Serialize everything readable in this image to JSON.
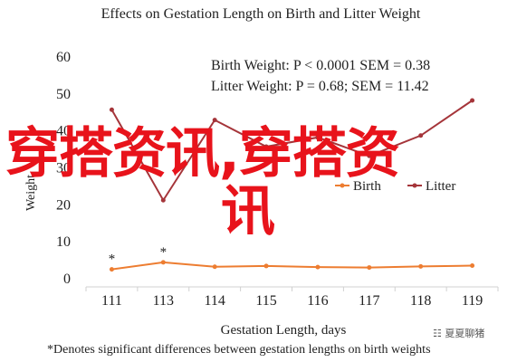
{
  "chart_data": {
    "type": "line",
    "title": "Effects on Gestation Length on Birth and Litter Weight",
    "xlabel": "Gestation Length, days",
    "ylabel": "Weight",
    "x": [
      111,
      113,
      114,
      115,
      116,
      117,
      118,
      119
    ],
    "ylim": [
      0,
      60
    ],
    "yticks": [
      0,
      10,
      20,
      30,
      40,
      50,
      60
    ],
    "grid": false,
    "legend_position": "center-right",
    "series": [
      {
        "name": "Birth",
        "color": "#ED7D31",
        "values": [
          2.3,
          4.2,
          3.0,
          3.2,
          2.9,
          2.8,
          3.1,
          3.3
        ]
      },
      {
        "name": "Litter",
        "color": "#A5353A",
        "values": [
          45.5,
          21,
          42.7,
          35.5,
          38,
          33,
          38.5,
          48
        ]
      }
    ],
    "annotations": [
      "Birth Weight: P < 0.0001 SEM = 0.38",
      "Litter Weight: P = 0.68; SEM = 11.42"
    ],
    "significance_marks": [
      {
        "x": 111,
        "label": "*"
      },
      {
        "x": 113,
        "label": "*"
      }
    ],
    "footnote": "*Denotes significant differences between gestation lengths on birth weights"
  },
  "watermark": {
    "line1": "穿搭资讯,穿搭资",
    "line2": "讯"
  },
  "wechat_label": "夏夏聊猪"
}
